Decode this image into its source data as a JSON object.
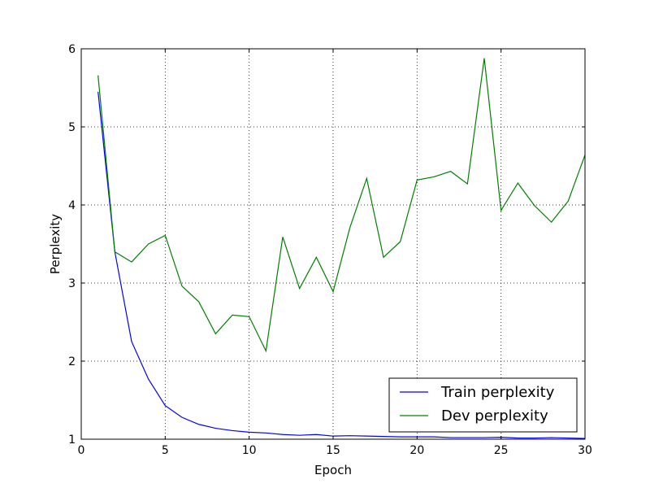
{
  "chart_data": {
    "type": "line",
    "title": "",
    "xlabel": "Epoch",
    "ylabel": "Perplexity",
    "xlim": [
      0,
      30
    ],
    "ylim": [
      1,
      6
    ],
    "xticks": [
      0,
      5,
      10,
      15,
      20,
      25,
      30
    ],
    "yticks": [
      1,
      2,
      3,
      4,
      5,
      6
    ],
    "grid": true,
    "legend_position": "bottom-right",
    "x": [
      1,
      2,
      3,
      4,
      5,
      6,
      7,
      8,
      9,
      10,
      11,
      12,
      13,
      14,
      15,
      16,
      17,
      18,
      19,
      20,
      21,
      22,
      23,
      24,
      25,
      26,
      27,
      28,
      29,
      30
    ],
    "series": [
      {
        "name": "Train perplexity",
        "color": "#0000ff",
        "values": [
          5.45,
          3.4,
          2.25,
          1.77,
          1.43,
          1.28,
          1.19,
          1.14,
          1.11,
          1.09,
          1.08,
          1.06,
          1.05,
          1.06,
          1.04,
          1.045,
          1.04,
          1.035,
          1.03,
          1.03,
          1.03,
          1.02,
          1.02,
          1.02,
          1.025,
          1.015,
          1.015,
          1.02,
          1.015,
          1.01
        ]
      },
      {
        "name": "Dev perplexity",
        "color": "#008000",
        "values": [
          5.66,
          3.4,
          3.27,
          3.5,
          3.61,
          2.96,
          2.76,
          2.35,
          2.59,
          2.57,
          2.13,
          3.59,
          2.93,
          3.33,
          2.89,
          3.71,
          4.34,
          3.33,
          3.53,
          4.32,
          4.36,
          4.43,
          4.27,
          5.88,
          3.93,
          4.28,
          3.99,
          3.78,
          4.05,
          4.64
        ]
      }
    ]
  }
}
